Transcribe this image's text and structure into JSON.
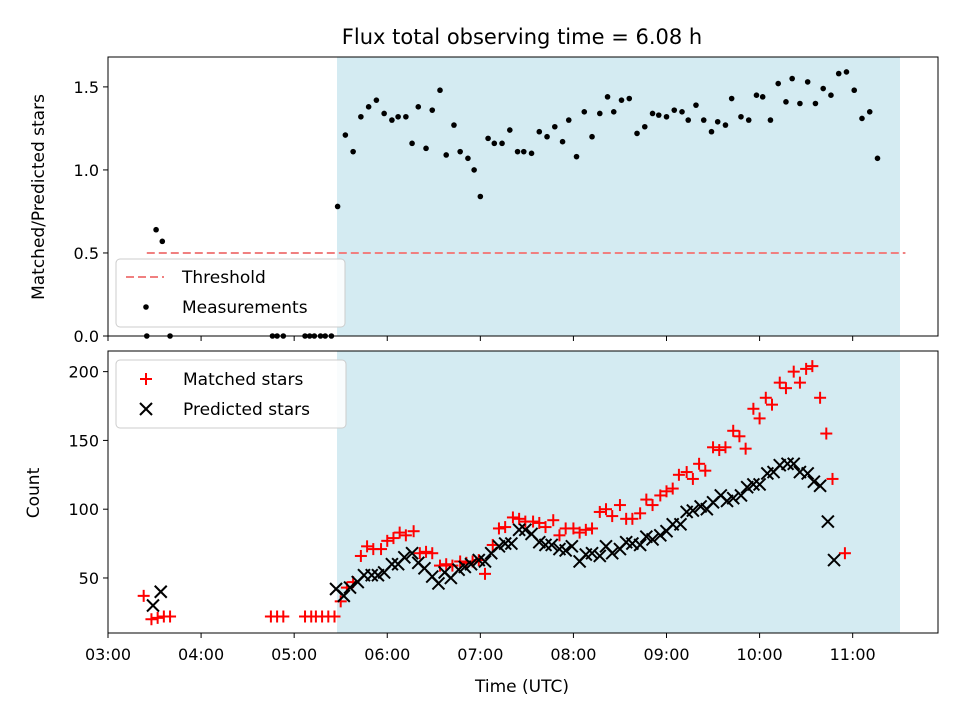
{
  "chart_data": [
    {
      "type": "scatter",
      "title": "Flux total observing time = 6.08 h",
      "ylabel": "Matched/Predicted stars",
      "xlabel": "",
      "ylim": [
        0,
        1.68
      ],
      "yticks": [
        "0.0",
        "0.5",
        "1.0",
        "1.5"
      ],
      "x_axis": "time (UTC), shared with lower panel",
      "observing_window": [
        "05:28",
        "11:34"
      ],
      "highlight_color": "#d4ebf2",
      "legend": {
        "placement": "lower-left",
        "entries": [
          "Threshold",
          "Measurements"
        ]
      },
      "threshold": {
        "name": "Threshold",
        "value": 0.5,
        "x_range": [
          "03:25",
          "11:34"
        ],
        "color": "#f08080",
        "style": "dashed"
      },
      "series": [
        {
          "name": "Measurements",
          "marker": "dot",
          "color": "#000000",
          "points": [
            [
              "03:25",
              0.0
            ],
            [
              "03:31",
              0.64
            ],
            [
              "03:35",
              0.57
            ],
            [
              "03:40",
              0.0
            ],
            [
              "04:46",
              0.0
            ],
            [
              "04:49",
              0.0
            ],
            [
              "04:53",
              0.0
            ],
            [
              "05:07",
              0.0
            ],
            [
              "05:10",
              0.0
            ],
            [
              "05:13",
              0.0
            ],
            [
              "05:17",
              0.0
            ],
            [
              "05:20",
              0.0
            ],
            [
              "05:24",
              0.0
            ],
            [
              "05:28",
              0.78
            ],
            [
              "05:33",
              1.21
            ],
            [
              "05:38",
              1.11
            ],
            [
              "05:43",
              1.32
            ],
            [
              "05:48",
              1.38
            ],
            [
              "05:53",
              1.42
            ],
            [
              "05:58",
              1.34
            ],
            [
              "06:03",
              1.3
            ],
            [
              "06:07",
              1.32
            ],
            [
              "06:12",
              1.32
            ],
            [
              "06:16",
              1.16
            ],
            [
              "06:20",
              1.38
            ],
            [
              "06:25",
              1.13
            ],
            [
              "06:29",
              1.36
            ],
            [
              "06:34",
              1.48
            ],
            [
              "06:38",
              1.09
            ],
            [
              "06:43",
              1.27
            ],
            [
              "06:47",
              1.11
            ],
            [
              "06:52",
              1.07
            ],
            [
              "06:56",
              1.0
            ],
            [
              "07:00",
              0.84
            ],
            [
              "07:05",
              1.19
            ],
            [
              "07:09",
              1.16
            ],
            [
              "07:14",
              1.16
            ],
            [
              "07:19",
              1.24
            ],
            [
              "07:24",
              1.11
            ],
            [
              "07:28",
              1.11
            ],
            [
              "07:33",
              1.1
            ],
            [
              "07:38",
              1.23
            ],
            [
              "07:43",
              1.2
            ],
            [
              "07:48",
              1.26
            ],
            [
              "07:53",
              1.17
            ],
            [
              "07:57",
              1.3
            ],
            [
              "08:02",
              1.08
            ],
            [
              "08:07",
              1.35
            ],
            [
              "08:12",
              1.2
            ],
            [
              "08:17",
              1.34
            ],
            [
              "08:22",
              1.44
            ],
            [
              "08:26",
              1.35
            ],
            [
              "08:31",
              1.42
            ],
            [
              "08:36",
              1.43
            ],
            [
              "08:41",
              1.22
            ],
            [
              "08:46",
              1.26
            ],
            [
              "08:51",
              1.34
            ],
            [
              "08:55",
              1.33
            ],
            [
              "09:00",
              1.32
            ],
            [
              "09:05",
              1.36
            ],
            [
              "09:10",
              1.35
            ],
            [
              "09:14",
              1.3
            ],
            [
              "09:19",
              1.39
            ],
            [
              "09:24",
              1.3
            ],
            [
              "09:29",
              1.23
            ],
            [
              "09:33",
              1.29
            ],
            [
              "09:38",
              1.27
            ],
            [
              "09:42",
              1.43
            ],
            [
              "09:48",
              1.32
            ],
            [
              "09:53",
              1.3
            ],
            [
              "09:58",
              1.45
            ],
            [
              "10:02",
              1.44
            ],
            [
              "10:07",
              1.3
            ],
            [
              "10:12",
              1.52
            ],
            [
              "10:17",
              1.41
            ],
            [
              "10:21",
              1.55
            ],
            [
              "10:26",
              1.4
            ],
            [
              "10:31",
              1.53
            ],
            [
              "10:36",
              1.4
            ],
            [
              "10:41",
              1.49
            ],
            [
              "10:46",
              1.45
            ],
            [
              "10:51",
              1.58
            ],
            [
              "10:56",
              1.59
            ],
            [
              "11:01",
              1.48
            ],
            [
              "11:06",
              1.31
            ],
            [
              "11:11",
              1.35
            ],
            [
              "11:16",
              1.07
            ]
          ]
        }
      ]
    },
    {
      "type": "scatter",
      "title": "",
      "ylabel": "Count",
      "xlabel": "Time (UTC)",
      "xlim": [
        "03:00",
        "11:55"
      ],
      "ylim": [
        10,
        215
      ],
      "xticks": [
        "03:00",
        "04:00",
        "05:00",
        "06:00",
        "07:00",
        "08:00",
        "09:00",
        "10:00",
        "11:00"
      ],
      "yticks": [
        "50",
        "100",
        "150",
        "200"
      ],
      "observing_window": [
        "05:28",
        "11:34"
      ],
      "legend": {
        "placement": "upper-left",
        "entries": [
          "Matched stars",
          "Predicted stars"
        ]
      },
      "series": [
        {
          "name": "Matched stars",
          "marker": "plus",
          "color": "#ff0000",
          "points": [
            [
              "03:23",
              37
            ],
            [
              "03:28",
              20
            ],
            [
              "03:32",
              21
            ],
            [
              "03:36",
              22
            ],
            [
              "03:40",
              22
            ],
            [
              "04:45",
              22
            ],
            [
              "04:49",
              22
            ],
            [
              "04:53",
              22
            ],
            [
              "05:07",
              22
            ],
            [
              "05:11",
              22
            ],
            [
              "05:14",
              22
            ],
            [
              "05:18",
              22
            ],
            [
              "05:22",
              22
            ],
            [
              "05:26",
              22
            ],
            [
              "05:30",
              33
            ],
            [
              "05:34",
              43
            ],
            [
              "05:38",
              47
            ],
            [
              "05:43",
              66
            ],
            [
              "05:47",
              73
            ],
            [
              "05:51",
              71
            ],
            [
              "05:56",
              71
            ],
            [
              "06:00",
              77
            ],
            [
              "06:04",
              79
            ],
            [
              "06:08",
              83
            ],
            [
              "06:12",
              81
            ],
            [
              "06:17",
              84
            ],
            [
              "06:21",
              68
            ],
            [
              "06:25",
              69
            ],
            [
              "06:29",
              68
            ],
            [
              "06:34",
              59
            ],
            [
              "06:38",
              60
            ],
            [
              "06:42",
              59
            ],
            [
              "06:47",
              62
            ],
            [
              "06:51",
              61
            ],
            [
              "06:55",
              62
            ],
            [
              "06:59",
              63
            ],
            [
              "07:03",
              53
            ],
            [
              "07:08",
              74
            ],
            [
              "07:12",
              86
            ],
            [
              "07:16",
              87
            ],
            [
              "07:21",
              94
            ],
            [
              "07:25",
              93
            ],
            [
              "07:29",
              91
            ],
            [
              "07:34",
              91
            ],
            [
              "07:38",
              90
            ],
            [
              "07:42",
              87
            ],
            [
              "07:47",
              92
            ],
            [
              "07:51",
              81
            ],
            [
              "07:55",
              86
            ],
            [
              "08:00",
              86
            ],
            [
              "08:04",
              83
            ],
            [
              "08:08",
              85
            ],
            [
              "08:12",
              86
            ],
            [
              "08:17",
              98
            ],
            [
              "08:21",
              100
            ],
            [
              "08:25",
              95
            ],
            [
              "08:30",
              103
            ],
            [
              "08:34",
              93
            ],
            [
              "08:38",
              93
            ],
            [
              "08:43",
              97
            ],
            [
              "08:47",
              107
            ],
            [
              "08:51",
              103
            ],
            [
              "08:56",
              110
            ],
            [
              "09:00",
              113
            ],
            [
              "09:04",
              115
            ],
            [
              "09:08",
              125
            ],
            [
              "09:13",
              127
            ],
            [
              "09:17",
              122
            ],
            [
              "09:21",
              133
            ],
            [
              "09:25",
              128
            ],
            [
              "09:30",
              145
            ],
            [
              "09:34",
              143
            ],
            [
              "09:38",
              145
            ],
            [
              "09:43",
              157
            ],
            [
              "09:47",
              153
            ],
            [
              "09:51",
              144
            ],
            [
              "09:56",
              173
            ],
            [
              "10:00",
              166
            ],
            [
              "10:04",
              181
            ],
            [
              "10:08",
              176
            ],
            [
              "10:13",
              192
            ],
            [
              "10:17",
              188
            ],
            [
              "10:22",
              200
            ],
            [
              "10:26",
              192
            ],
            [
              "10:30",
              202
            ],
            [
              "10:34",
              204
            ],
            [
              "10:39",
              181
            ],
            [
              "10:43",
              155
            ],
            [
              "10:47",
              122
            ],
            [
              "10:55",
              68
            ]
          ]
        },
        {
          "name": "Predicted stars",
          "marker": "x",
          "color": "#000000",
          "points": [
            [
              "03:29",
              30
            ],
            [
              "03:34",
              40
            ],
            [
              "05:27",
              42
            ],
            [
              "05:32",
              37
            ],
            [
              "05:36",
              43
            ],
            [
              "05:41",
              47
            ],
            [
              "05:45",
              52
            ],
            [
              "05:50",
              52
            ],
            [
              "05:54",
              52
            ],
            [
              "05:58",
              54
            ],
            [
              "06:03",
              60
            ],
            [
              "06:07",
              60
            ],
            [
              "06:11",
              65
            ],
            [
              "06:16",
              68
            ],
            [
              "06:20",
              61
            ],
            [
              "06:24",
              57
            ],
            [
              "06:29",
              51
            ],
            [
              "06:33",
              46
            ],
            [
              "06:37",
              54
            ],
            [
              "06:41",
              50
            ],
            [
              "06:46",
              56
            ],
            [
              "06:50",
              58
            ],
            [
              "06:54",
              60
            ],
            [
              "06:59",
              63
            ],
            [
              "07:03",
              62
            ],
            [
              "07:07",
              68
            ],
            [
              "07:12",
              73
            ],
            [
              "07:16",
              75
            ],
            [
              "07:20",
              75
            ],
            [
              "07:25",
              85
            ],
            [
              "07:29",
              85
            ],
            [
              "07:33",
              82
            ],
            [
              "07:38",
              76
            ],
            [
              "07:42",
              74
            ],
            [
              "07:46",
              74
            ],
            [
              "07:51",
              71
            ],
            [
              "07:55",
              70
            ],
            [
              "07:59",
              73
            ],
            [
              "08:04",
              62
            ],
            [
              "08:08",
              67
            ],
            [
              "08:12",
              68
            ],
            [
              "08:17",
              66
            ],
            [
              "08:21",
              73
            ],
            [
              "08:25",
              68
            ],
            [
              "08:30",
              71
            ],
            [
              "08:34",
              76
            ],
            [
              "08:38",
              75
            ],
            [
              "08:43",
              74
            ],
            [
              "08:47",
              80
            ],
            [
              "08:51",
              78
            ],
            [
              "08:56",
              81
            ],
            [
              "09:00",
              84
            ],
            [
              "09:04",
              89
            ],
            [
              "09:09",
              89
            ],
            [
              "09:13",
              98
            ],
            [
              "09:17",
              99
            ],
            [
              "09:22",
              102
            ],
            [
              "09:26",
              100
            ],
            [
              "09:30",
              105
            ],
            [
              "09:35",
              110
            ],
            [
              "09:39",
              106
            ],
            [
              "09:43",
              108
            ],
            [
              "09:48",
              110
            ],
            [
              "09:52",
              116
            ],
            [
              "09:56",
              118
            ],
            [
              "10:00",
              118
            ],
            [
              "10:05",
              126
            ],
            [
              "10:09",
              127
            ],
            [
              "10:13",
              132
            ],
            [
              "10:18",
              133
            ],
            [
              "10:22",
              133
            ],
            [
              "10:26",
              127
            ],
            [
              "10:31",
              126
            ],
            [
              "10:35",
              120
            ],
            [
              "10:39",
              117
            ],
            [
              "10:44",
              91
            ],
            [
              "10:48",
              63
            ]
          ]
        }
      ]
    }
  ]
}
